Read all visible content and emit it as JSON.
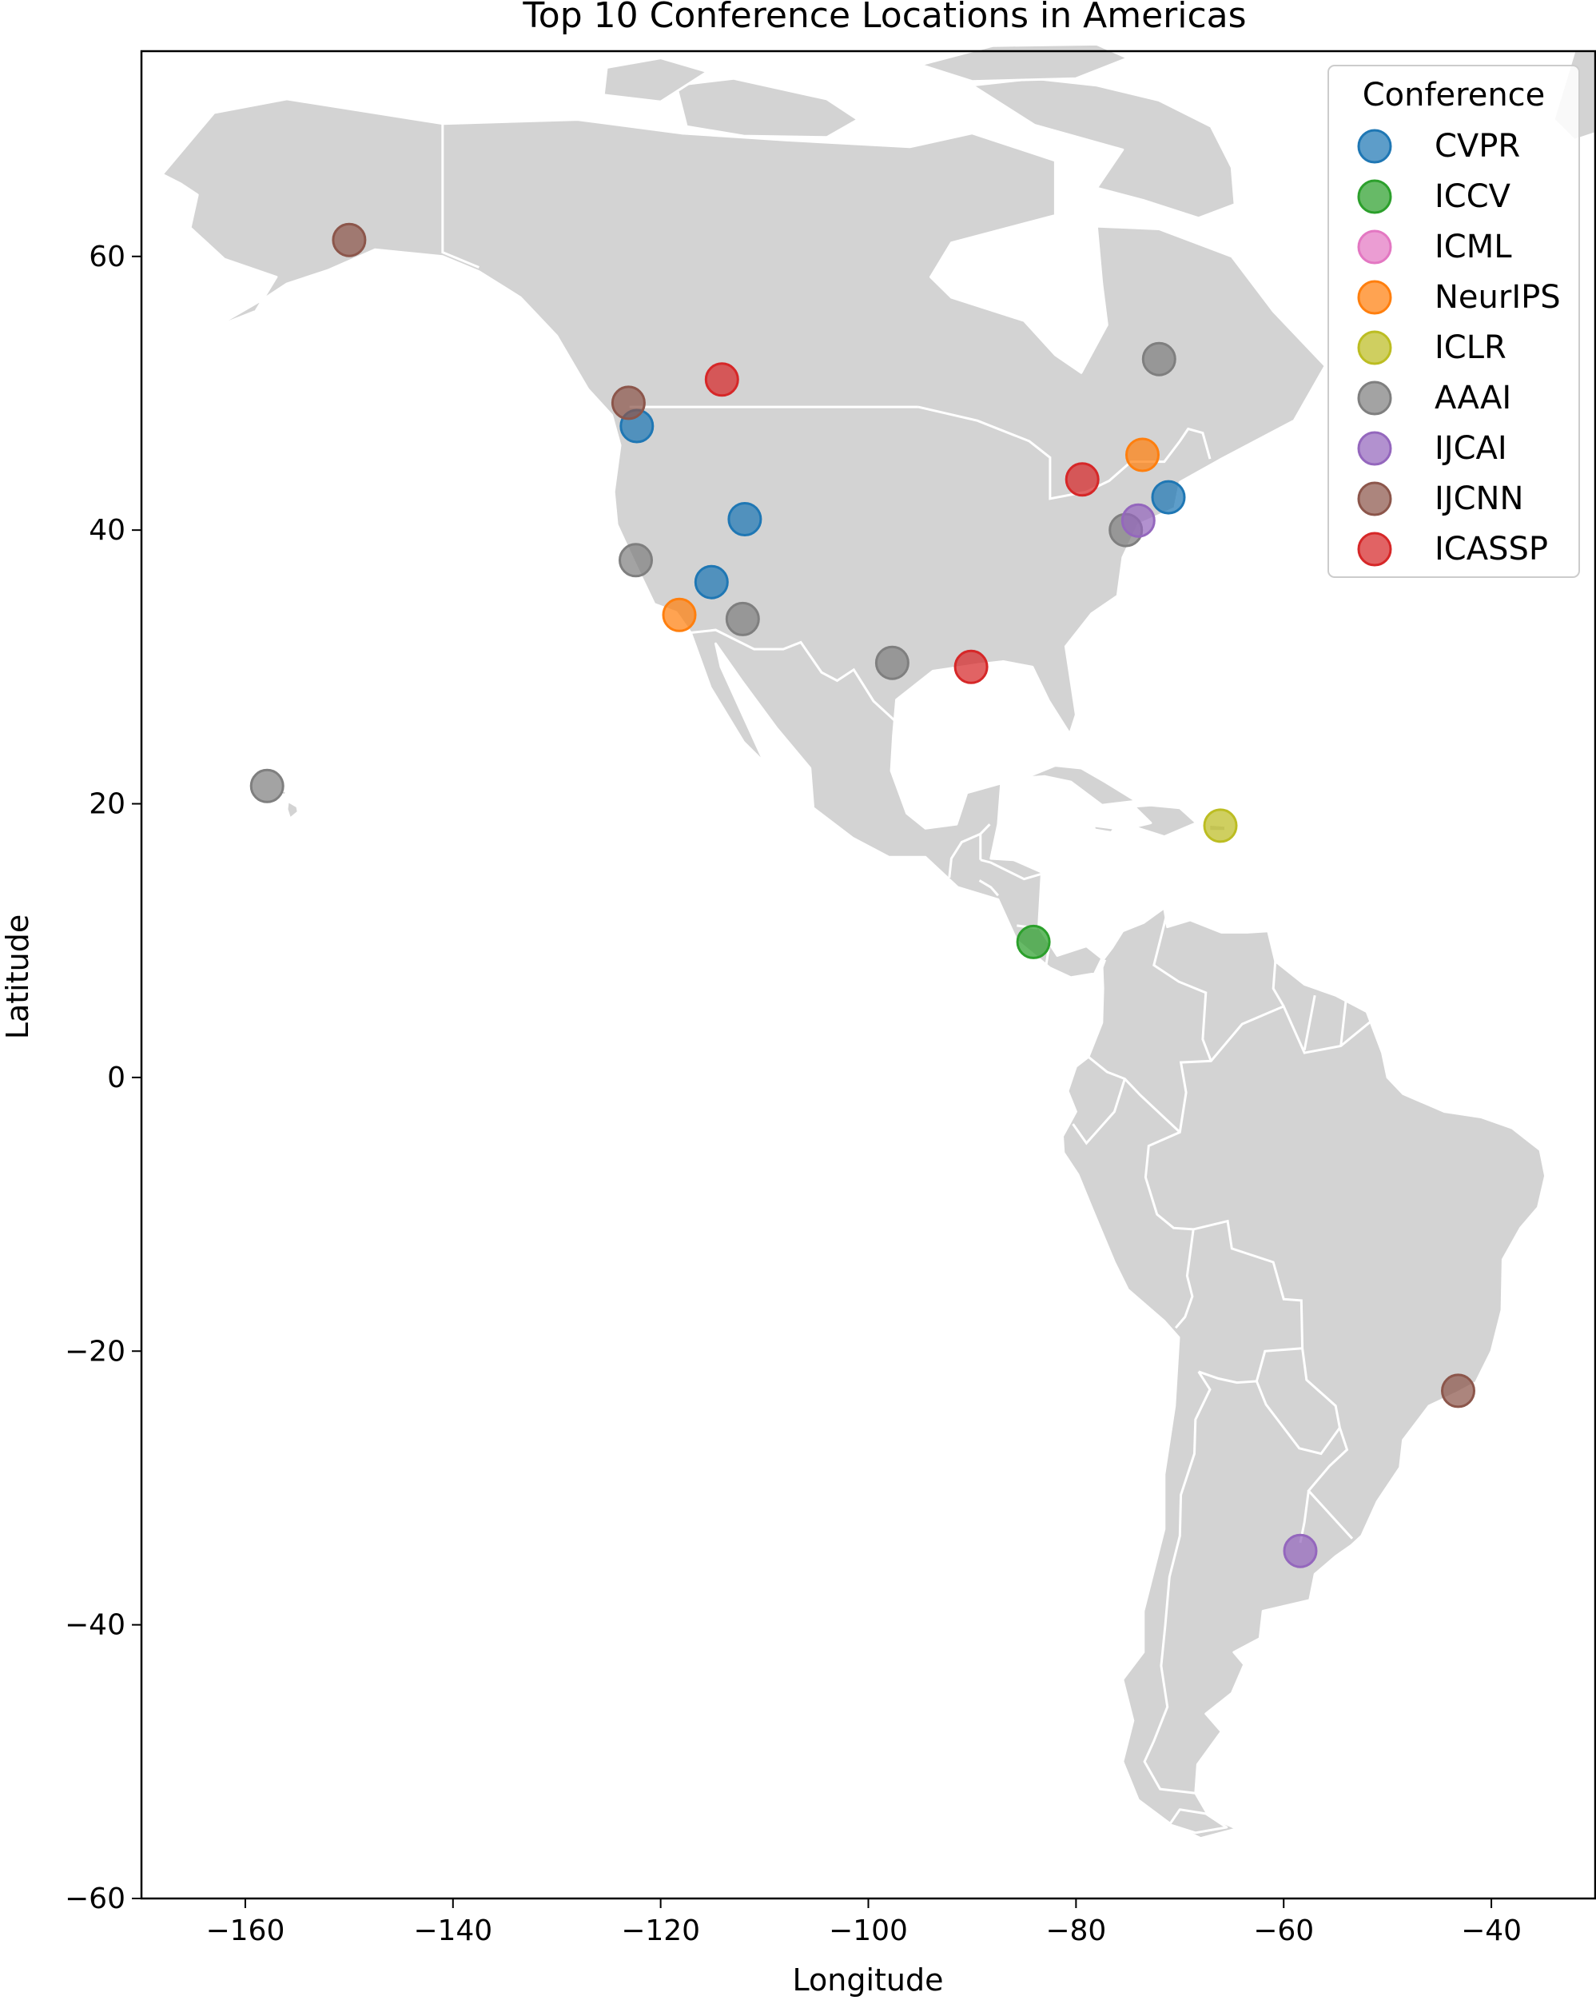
{
  "title": "Top 10 Conference Locations in Americas",
  "chart_data": {
    "type": "scatter",
    "title": "Top 10 Conference Locations in Americas",
    "xlabel": "Longitude",
    "ylabel": "Latitude",
    "xlim": [
      -170,
      -30
    ],
    "ylim": [
      -60,
      75
    ],
    "xticks": [
      -160,
      -140,
      -120,
      -100,
      -80,
      -60,
      -40
    ],
    "yticks": [
      -60,
      -40,
      -20,
      0,
      20,
      40,
      60
    ],
    "xtick_labels": [
      "−160",
      "−140",
      "−120",
      "−100",
      "−80",
      "−60",
      "−40"
    ],
    "ytick_labels": [
      "−60",
      "−40",
      "−20",
      "0",
      "20",
      "40",
      "60"
    ],
    "grid": false,
    "legend": {
      "title": "Conference",
      "placement": "top-right"
    },
    "basemap": {
      "land_color": "#d3d3d3",
      "border_color": "#ffffff"
    },
    "series": [
      {
        "name": "CVPR",
        "color": "#1f77b4",
        "points": [
          [
            -122.3,
            47.6
          ],
          [
            -111.9,
            40.8
          ],
          [
            -115.1,
            36.2
          ],
          [
            -71.1,
            42.4
          ]
        ]
      },
      {
        "name": "ICCV",
        "color": "#2ca02c",
        "points": [
          [
            -84.1,
            9.9
          ]
        ]
      },
      {
        "name": "ICML",
        "color": "#e377c2",
        "points": []
      },
      {
        "name": "NeurIPS",
        "color": "#ff7f0e",
        "points": [
          [
            -118.2,
            33.8
          ],
          [
            -73.6,
            45.5
          ]
        ]
      },
      {
        "name": "ICLR",
        "color": "#bcbd22",
        "points": [
          [
            -66.1,
            18.4
          ]
        ]
      },
      {
        "name": "AAAI",
        "color": "#7f7f7f",
        "points": [
          [
            -72.0,
            52.5
          ],
          [
            -122.4,
            37.8
          ],
          [
            -112.1,
            33.5
          ],
          [
            -97.7,
            30.3
          ],
          [
            -75.2,
            40.0
          ],
          [
            -157.9,
            21.3
          ]
        ]
      },
      {
        "name": "IJCAI",
        "color": "#9467bd",
        "points": [
          [
            -74.0,
            40.7
          ],
          [
            -58.4,
            -34.6
          ]
        ]
      },
      {
        "name": "IJCNN",
        "color": "#8c564b",
        "points": [
          [
            -150.0,
            61.2
          ],
          [
            -123.1,
            49.3
          ],
          [
            -43.2,
            -22.9
          ]
        ]
      },
      {
        "name": "ICASSP",
        "color": "#d62728",
        "points": [
          [
            -114.1,
            51.0
          ],
          [
            -79.4,
            43.7
          ],
          [
            -90.1,
            30.0
          ]
        ]
      }
    ]
  }
}
